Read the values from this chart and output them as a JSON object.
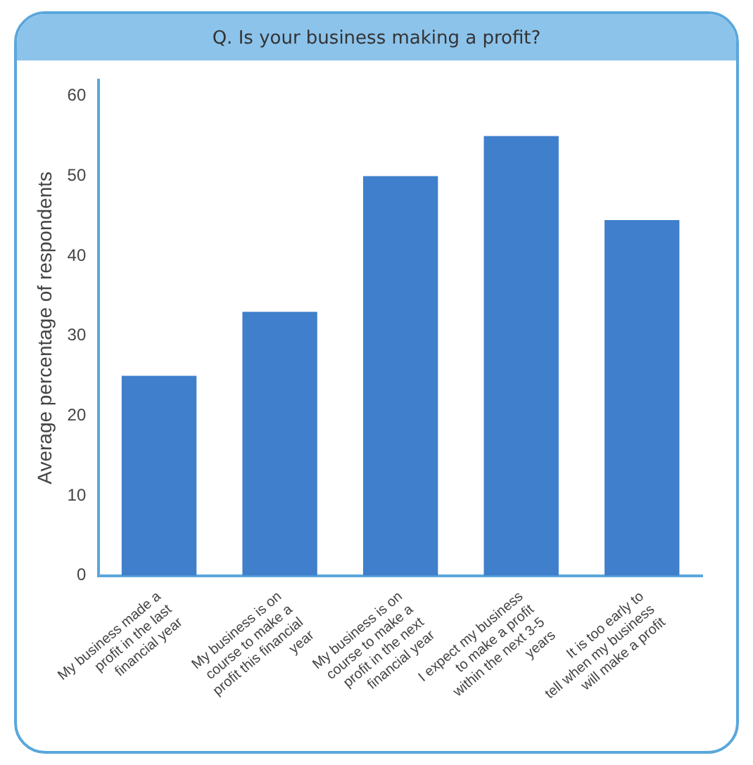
{
  "chart_data": {
    "type": "bar",
    "title": "Q. Is your business making a profit?",
    "ylabel": "Average percentage of respondents",
    "categories": [
      "My business made a profit in the last financial year",
      "My business is on course to make a profit this financial year",
      "My business is on course to make a profit in the next financial year",
      "I expect my business to make a profit within the next 3-5 years",
      "It is too early to tell when my business will make a profit"
    ],
    "values": [
      25,
      33,
      50,
      55,
      44.5
    ],
    "color": "#3f7fcb",
    "ylim": [
      0,
      62
    ],
    "yticks": [
      0,
      10,
      20,
      30,
      40,
      50,
      60
    ],
    "grid": false
  }
}
